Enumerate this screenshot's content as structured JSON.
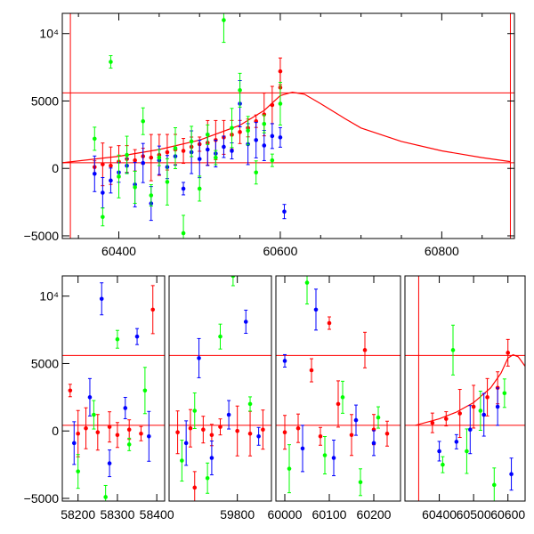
{
  "chart_data": [
    {
      "type": "scatter",
      "panel": "top",
      "title": "",
      "xlabel": "",
      "ylabel": "",
      "xlim": [
        60330,
        60890
      ],
      "ylim": [
        -5200,
        11500
      ],
      "xticks": [
        60400,
        60600,
        60800
      ],
      "xtick_labels": [
        "60400",
        "60600",
        "60800"
      ],
      "yticks": [
        -5000,
        0,
        5000,
        10000
      ],
      "ytick_labels": [
        "−5000",
        "0",
        "5000",
        "10⁴"
      ],
      "grid": false,
      "legend": "none",
      "vertical_lines": [
        60340,
        60885
      ],
      "horizontal_lines": [
        5600,
        420
      ],
      "model_curve": {
        "color": "#ff0000",
        "points": [
          [
            60330,
            420
          ],
          [
            60400,
            900
          ],
          [
            60450,
            1400
          ],
          [
            60500,
            2100
          ],
          [
            60550,
            3200
          ],
          [
            60580,
            4300
          ],
          [
            60600,
            5400
          ],
          [
            60615,
            5650
          ],
          [
            60630,
            5500
          ],
          [
            60650,
            4800
          ],
          [
            60680,
            3700
          ],
          [
            60700,
            3000
          ],
          [
            60750,
            2000
          ],
          [
            60800,
            1300
          ],
          [
            60850,
            800
          ],
          [
            60885,
            500
          ]
        ]
      },
      "series": [
        {
          "color": "#ff0000",
          "points": [
            [
              60370,
              100
            ],
            [
              60380,
              300
            ],
            [
              60390,
              200
            ],
            [
              60400,
              500
            ],
            [
              60410,
              700
            ],
            [
              60420,
              600
            ],
            [
              60430,
              900
            ],
            [
              60440,
              800
            ],
            [
              60450,
              1000
            ],
            [
              60460,
              1200
            ],
            [
              60470,
              1400
            ],
            [
              60480,
              1300
            ],
            [
              60490,
              1600
            ],
            [
              60500,
              1800
            ],
            [
              60510,
              1900
            ],
            [
              60520,
              2100
            ],
            [
              60530,
              2300
            ],
            [
              60540,
              2500
            ],
            [
              60550,
              2700
            ],
            [
              60560,
              3000
            ],
            [
              60570,
              3500
            ],
            [
              60580,
              4000
            ],
            [
              60590,
              4700
            ],
            [
              60600,
              6000
            ],
            [
              60600,
              7200
            ]
          ]
        },
        {
          "color": "#0000ff",
          "points": [
            [
              60370,
              -400
            ],
            [
              60380,
              -1800
            ],
            [
              60390,
              -900
            ],
            [
              60400,
              -300
            ],
            [
              60410,
              200
            ],
            [
              60420,
              -1200
            ],
            [
              60430,
              400
            ],
            [
              60440,
              -2600
            ],
            [
              60450,
              600
            ],
            [
              60460,
              100
            ],
            [
              60470,
              900
            ],
            [
              60480,
              -1500
            ],
            [
              60490,
              1200
            ],
            [
              60500,
              700
            ],
            [
              60510,
              1400
            ],
            [
              60520,
              1100
            ],
            [
              60530,
              1600
            ],
            [
              60540,
              1300
            ],
            [
              60550,
              4800
            ],
            [
              60560,
              1800
            ],
            [
              60570,
              2100
            ],
            [
              60580,
              1700
            ],
            [
              60590,
              2400
            ],
            [
              60600,
              2300
            ],
            [
              60605,
              -3200
            ]
          ]
        },
        {
          "color": "#00ff00",
          "points": [
            [
              60370,
              2200
            ],
            [
              60380,
              -3600
            ],
            [
              60390,
              7900
            ],
            [
              60400,
              -600
            ],
            [
              60410,
              1000
            ],
            [
              60420,
              -1400
            ],
            [
              60430,
              3500
            ],
            [
              60440,
              -2000
            ],
            [
              60450,
              800
            ],
            [
              60460,
              -1000
            ],
            [
              60470,
              1500
            ],
            [
              60480,
              -4800
            ],
            [
              60490,
              2000
            ],
            [
              60500,
              -1500
            ],
            [
              60510,
              2500
            ],
            [
              60520,
              800
            ],
            [
              60530,
              11000
            ],
            [
              60540,
              3000
            ],
            [
              60550,
              5800
            ],
            [
              60560,
              2800
            ],
            [
              60570,
              -300
            ],
            [
              60580,
              3300
            ],
            [
              60590,
              600
            ],
            [
              60600,
              4800
            ]
          ]
        }
      ]
    },
    {
      "type": "scatter",
      "panel": "bottom",
      "title": "",
      "xlabel": "",
      "ylabel": "",
      "broken_axis": true,
      "segments": [
        {
          "xlim": [
            58160,
            58420
          ],
          "xticks": [
            58200,
            58300,
            58400
          ],
          "xtick_labels": [
            "58200",
            "58300",
            "58400"
          ]
        },
        {
          "xlim": [
            59640,
            59880
          ],
          "xticks": [
            59800
          ],
          "xtick_labels": [
            "59800"
          ]
        },
        {
          "xlim": [
            59980,
            60260
          ],
          "xticks": [
            60000,
            60100,
            60200
          ],
          "xtick_labels": [
            "60000",
            "60100",
            "60200"
          ]
        },
        {
          "xlim": [
            60300,
            60650
          ],
          "xticks": [
            60400,
            60500,
            60600
          ],
          "xtick_labels": [
            "60400",
            "60500",
            "60600"
          ]
        }
      ],
      "ylim": [
        -5200,
        11500
      ],
      "yticks": [
        -5000,
        0,
        5000,
        10000
      ],
      "ytick_labels": [
        "−5000",
        "0",
        "5000",
        "10⁴"
      ],
      "grid": false,
      "legend": "none",
      "vertical_lines": [
        60340
      ],
      "horizontal_lines": [
        5600,
        420
      ],
      "series": [
        {
          "color": "#ff0000",
          "points": [
            [
              58180,
              3000
            ],
            [
              58200,
              -200
            ],
            [
              58220,
              200
            ],
            [
              58250,
              -100
            ],
            [
              58280,
              300
            ],
            [
              58300,
              -300
            ],
            [
              58330,
              100
            ],
            [
              58360,
              -200
            ],
            [
              58390,
              9000
            ],
            [
              59660,
              -100
            ],
            [
              59690,
              200
            ],
            [
              59700,
              -4200
            ],
            [
              59720,
              100
            ],
            [
              59740,
              -300
            ],
            [
              59760,
              300
            ],
            [
              59800,
              0
            ],
            [
              59830,
              -200
            ],
            [
              59860,
              100
            ],
            [
              60000,
              -100
            ],
            [
              60030,
              200
            ],
            [
              60060,
              4500
            ],
            [
              60080,
              -400
            ],
            [
              60100,
              8000
            ],
            [
              60120,
              2000
            ],
            [
              60150,
              -300
            ],
            [
              60180,
              6000
            ],
            [
              60200,
              100
            ],
            [
              60230,
              -200
            ],
            [
              60380,
              600
            ],
            [
              60420,
              900
            ],
            [
              60460,
              1300
            ],
            [
              60500,
              1800
            ],
            [
              60540,
              2500
            ],
            [
              60570,
              3200
            ],
            [
              60600,
              5800
            ]
          ]
        },
        {
          "color": "#0000ff",
          "points": [
            [
              58190,
              -900
            ],
            [
              58230,
              2500
            ],
            [
              58260,
              9800
            ],
            [
              58280,
              -2400
            ],
            [
              58320,
              1700
            ],
            [
              58350,
              7000
            ],
            [
              58380,
              -400
            ],
            [
              59680,
              -900
            ],
            [
              59710,
              5400
            ],
            [
              59740,
              -2000
            ],
            [
              59780,
              1200
            ],
            [
              59820,
              8100
            ],
            [
              59850,
              -400
            ],
            [
              60000,
              5200
            ],
            [
              60040,
              -1300
            ],
            [
              60070,
              9000
            ],
            [
              60110,
              -2000
            ],
            [
              60160,
              800
            ],
            [
              60200,
              -900
            ],
            [
              60400,
              -1500
            ],
            [
              60450,
              -800
            ],
            [
              60490,
              100
            ],
            [
              60530,
              1200
            ],
            [
              60570,
              1800
            ],
            [
              60610,
              -3200
            ]
          ]
        },
        {
          "color": "#00ff00",
          "points": [
            [
              58200,
              -3000
            ],
            [
              58240,
              1200
            ],
            [
              58270,
              -4900
            ],
            [
              58300,
              6800
            ],
            [
              58330,
              -1000
            ],
            [
              58370,
              3000
            ],
            [
              59670,
              -2200
            ],
            [
              59700,
              1500
            ],
            [
              59730,
              -3500
            ],
            [
              59760,
              7000
            ],
            [
              59790,
              11500
            ],
            [
              59830,
              2000
            ],
            [
              60010,
              -2800
            ],
            [
              60050,
              11000
            ],
            [
              60090,
              -1800
            ],
            [
              60130,
              2500
            ],
            [
              60170,
              -3800
            ],
            [
              60210,
              1000
            ],
            [
              60410,
              -2500
            ],
            [
              60440,
              6000
            ],
            [
              60480,
              -1500
            ],
            [
              60520,
              1500
            ],
            [
              60560,
              -4000
            ],
            [
              60590,
              2800
            ]
          ]
        }
      ]
    }
  ]
}
